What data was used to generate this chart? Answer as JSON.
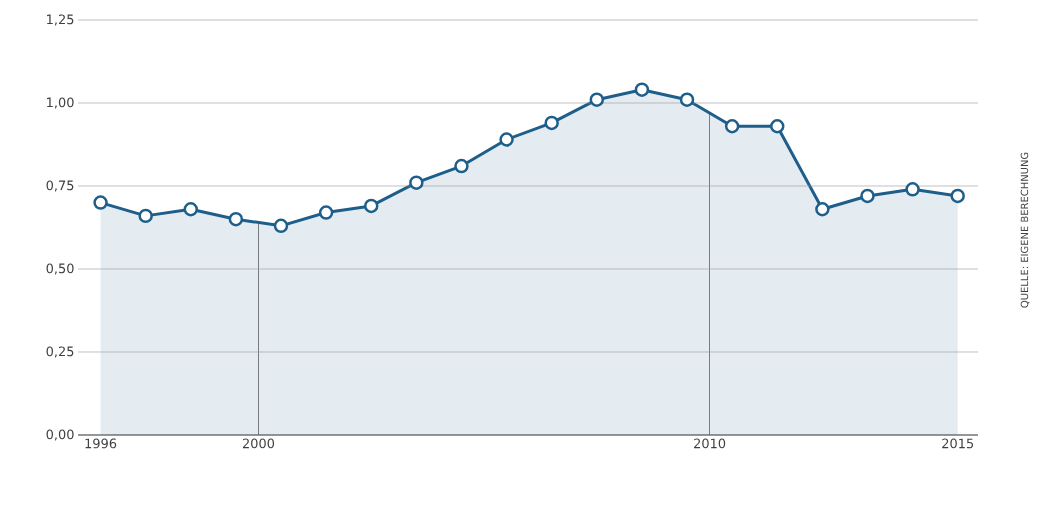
{
  "chart_data": {
    "type": "area",
    "x": [
      1996,
      1997,
      1998,
      1999,
      2000,
      2001,
      2002,
      2003,
      2004,
      2005,
      2006,
      2007,
      2008,
      2009,
      2010,
      2011,
      2012,
      2013,
      2014,
      2015
    ],
    "series": [
      {
        "color": "#1d5e8a",
        "values": [
          0.7,
          0.66,
          0.68,
          0.65,
          0.63,
          0.67,
          0.69,
          0.76,
          0.81,
          0.89,
          0.94,
          1.01,
          1.04,
          1.01,
          0.93,
          0.93,
          0.68,
          0.72,
          0.74,
          0.72
        ]
      }
    ],
    "xlim": [
      1995.5,
      2015.45
    ],
    "ylim": [
      0,
      1.25
    ],
    "xticks": [
      1996,
      {
        "value": 1999.5,
        "label": "2000"
      },
      {
        "value": 2009.5,
        "label": "2010"
      },
      2015
    ],
    "yticks": [
      {
        "value": 0,
        "label": "0,00"
      },
      {
        "value": 0.25,
        "label": "0,25"
      },
      {
        "value": 0.5,
        "label": "0,50"
      },
      {
        "value": 0.75,
        "label": "0,75"
      },
      {
        "value": 1.0,
        "label": "1,00"
      },
      {
        "value": 1.25,
        "label": "1,25"
      }
    ],
    "ref_lines": [
      {
        "axis": "x",
        "value": 1999.5,
        "color": "#555555"
      },
      {
        "axis": "x",
        "value": 2009.5,
        "color": "#555555"
      }
    ],
    "grid": "y",
    "marker": "circle",
    "line_style": "solid",
    "annotations": [
      "QUELLE: EIGENE BERECHNUNG"
    ]
  }
}
